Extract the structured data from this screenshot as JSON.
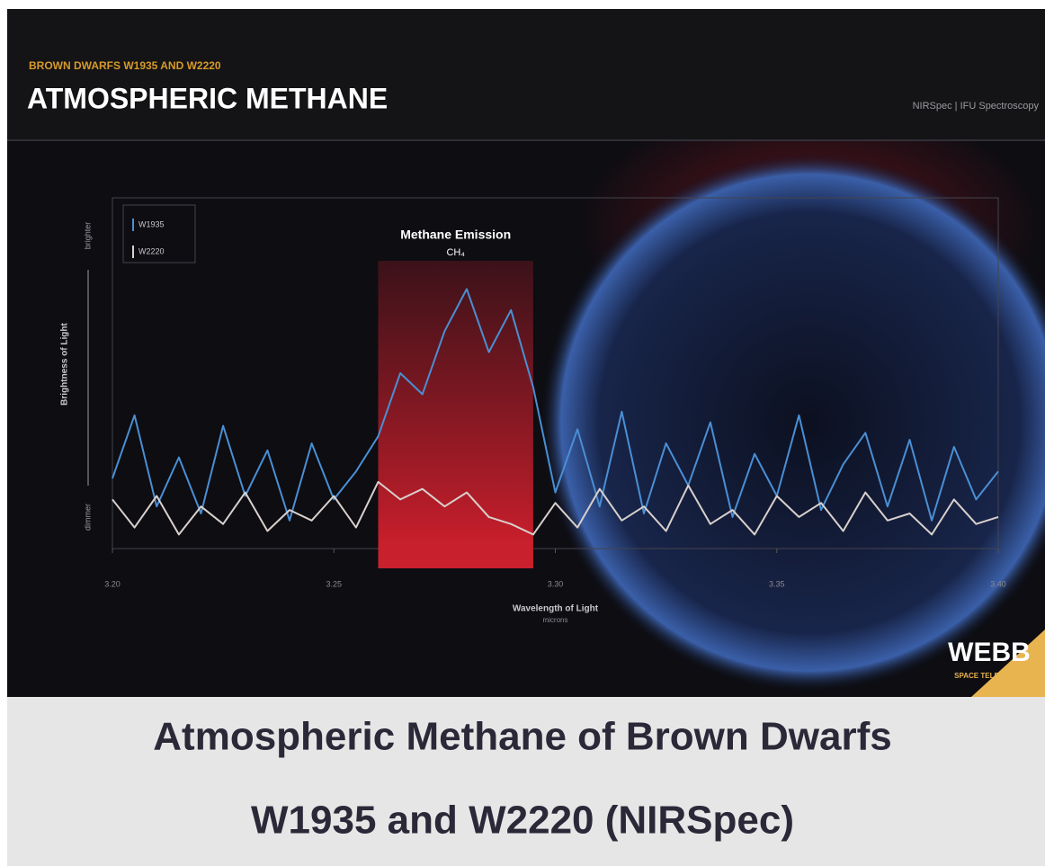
{
  "header": {
    "kicker": "BROWN DWARFS W1935 AND W2220",
    "title": "ATMOSPHERIC METHANE",
    "instrument": "NIRSpec | IFU Spectroscopy"
  },
  "chart_data": {
    "type": "line",
    "x_label": "Wavelength of Light",
    "x_unit": "microns",
    "y_label": "Brightness of Light",
    "y_high": "brighter",
    "y_low": "dimmer",
    "annotation": "Methane Emission",
    "annotation_sub": "CH₄",
    "highlight": [
      3.26,
      3.295
    ],
    "highlight_color": "#c8202e",
    "x": [
      3.2,
      3.205,
      3.21,
      3.215,
      3.22,
      3.225,
      3.23,
      3.235,
      3.24,
      3.245,
      3.25,
      3.255,
      3.26,
      3.265,
      3.27,
      3.275,
      3.28,
      3.285,
      3.29,
      3.295,
      3.3,
      3.305,
      3.31,
      3.315,
      3.32,
      3.325,
      3.33,
      3.335,
      3.34,
      3.345,
      3.35,
      3.355,
      3.36,
      3.365,
      3.37,
      3.375,
      3.38,
      3.385,
      3.39,
      3.395,
      3.4
    ],
    "xlim": [
      3.2,
      3.4
    ],
    "xticks": [
      {
        "value": 3.2,
        "label": "3.20"
      },
      3.25,
      {
        "value": 3.3,
        "label": "3.30"
      },
      3.35,
      {
        "value": 3.4,
        "label": "3.40"
      }
    ],
    "ylim": [
      0,
      10
    ],
    "series": [
      {
        "name": "W1935",
        "color": "#4a8fd4",
        "values": [
          2.0,
          3.8,
          1.2,
          2.6,
          1.0,
          3.5,
          1.5,
          2.8,
          0.8,
          3.0,
          1.4,
          2.2,
          3.2,
          5.0,
          4.4,
          6.2,
          7.4,
          5.6,
          6.8,
          4.6,
          1.6,
          3.4,
          1.2,
          3.9,
          1.0,
          3.0,
          1.8,
          3.6,
          0.9,
          2.7,
          1.5,
          3.8,
          1.1,
          2.4,
          3.3,
          1.2,
          3.1,
          0.8,
          2.9,
          1.4,
          2.2
        ]
      },
      {
        "name": "W2220",
        "color": "#d8d0cc",
        "values": [
          1.4,
          0.6,
          1.5,
          0.4,
          1.2,
          0.7,
          1.6,
          0.5,
          1.1,
          0.8,
          1.5,
          0.6,
          1.9,
          1.4,
          1.7,
          1.2,
          1.6,
          0.9,
          0.7,
          0.4,
          1.3,
          0.6,
          1.7,
          0.8,
          1.2,
          0.5,
          1.8,
          0.7,
          1.1,
          0.4,
          1.5,
          0.9,
          1.3,
          0.5,
          1.6,
          0.8,
          1.0,
          0.4,
          1.4,
          0.7,
          0.9
        ]
      }
    ]
  },
  "logo": {
    "name": "WEBB",
    "sub": "SPACE TELESCOPE"
  },
  "caption": {
    "line1": "Atmospheric Methane of Brown Dwarfs",
    "line2": "W1935 and W2220 (NIRSpec)"
  }
}
